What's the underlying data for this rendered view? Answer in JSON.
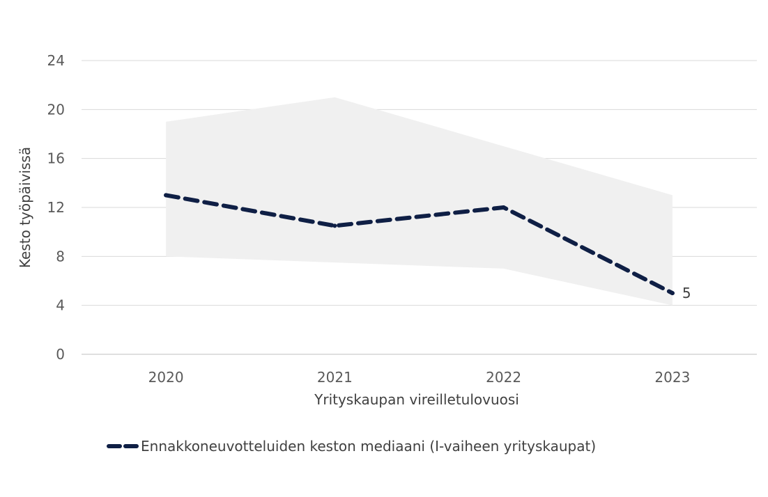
{
  "chart_data": {
    "type": "line",
    "title": "",
    "x": [
      "2020",
      "2021",
      "2022",
      "2023"
    ],
    "xlabel": "Yrityskaupan vireilletulovuosi",
    "ylabel": "Kesto työpäivissä",
    "ylim": [
      0,
      24
    ],
    "yticks": [
      "0",
      "4",
      "8",
      "12",
      "16",
      "20",
      "24"
    ],
    "grid": true,
    "legend_position": "bottom",
    "band": {
      "upper": [
        19,
        21,
        17,
        13
      ],
      "lower": [
        8,
        7.5,
        7,
        4
      ],
      "color": "#f0f0f0"
    },
    "series": [
      {
        "name": "Ennakkoneuvotteluiden keston mediaani  (I-vaiheen yrityskaupat)",
        "values": [
          13,
          10.5,
          12,
          5
        ],
        "color": "#0f1f45",
        "style": "dashed"
      }
    ],
    "annotations": [
      {
        "x": "2023",
        "value": 5,
        "text": "5"
      }
    ]
  }
}
